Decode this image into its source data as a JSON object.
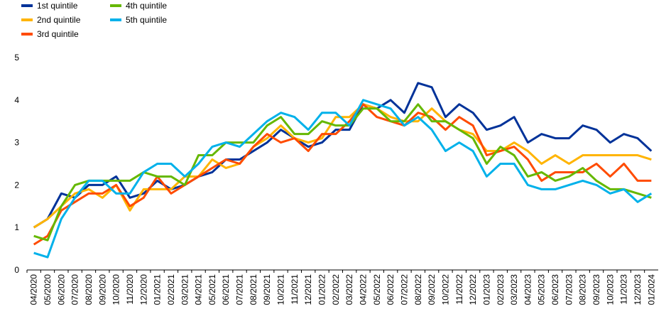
{
  "chart_data": {
    "type": "line",
    "categories": [
      "04/2020",
      "05/2020",
      "06/2020",
      "07/2020",
      "08/2020",
      "09/2020",
      "10/2020",
      "11/2020",
      "12/2020",
      "01/2021",
      "02/2021",
      "03/2021",
      "04/2021",
      "05/2021",
      "06/2021",
      "07/2021",
      "08/2021",
      "09/2021",
      "10/2021",
      "11/2021",
      "12/2021",
      "01/2022",
      "02/2022",
      "03/2022",
      "04/2022",
      "05/2022",
      "06/2022",
      "07/2022",
      "08/2022",
      "09/2022",
      "10/2022",
      "11/2022",
      "12/2022",
      "01/2023",
      "02/2023",
      "03/2023",
      "04/2023",
      "05/2023",
      "06/2023",
      "07/2023",
      "08/2023",
      "09/2023",
      "10/2023",
      "11/2023",
      "12/2023",
      "01/2024"
    ],
    "series": [
      {
        "name": "1st quintile",
        "color": "#003299",
        "values": [
          1.0,
          1.2,
          1.8,
          1.7,
          2.0,
          2.0,
          2.2,
          1.7,
          1.8,
          2.1,
          1.9,
          2.0,
          2.2,
          2.3,
          2.6,
          2.6,
          2.8,
          3.0,
          3.3,
          3.1,
          2.9,
          3.0,
          3.3,
          3.3,
          3.9,
          3.8,
          4.0,
          3.7,
          4.4,
          4.3,
          3.6,
          3.9,
          3.7,
          3.3,
          3.4,
          3.6,
          3.0,
          3.2,
          3.1,
          3.1,
          3.4,
          3.3,
          3.0,
          3.2,
          3.1,
          2.8
        ]
      },
      {
        "name": "2nd quintile",
        "color": "#ffb400",
        "values": [
          1.0,
          1.2,
          1.5,
          1.8,
          1.9,
          1.7,
          2.0,
          1.4,
          1.9,
          1.9,
          1.9,
          2.2,
          2.2,
          2.6,
          2.4,
          2.5,
          2.9,
          3.1,
          3.4,
          3.1,
          3.0,
          3.1,
          3.6,
          3.6,
          3.9,
          3.8,
          3.6,
          3.5,
          3.5,
          3.8,
          3.5,
          3.3,
          3.2,
          2.8,
          2.8,
          3.0,
          2.8,
          2.5,
          2.7,
          2.5,
          2.7,
          2.7,
          2.7,
          2.7,
          2.7,
          2.6
        ]
      },
      {
        "name": "3rd quintile",
        "color": "#ff4b00",
        "values": [
          0.6,
          0.8,
          1.4,
          1.6,
          1.8,
          1.8,
          2.0,
          1.5,
          1.7,
          2.2,
          1.8,
          2.0,
          2.2,
          2.4,
          2.6,
          2.5,
          2.9,
          3.2,
          3.0,
          3.1,
          2.8,
          3.2,
          3.2,
          3.5,
          3.9,
          3.6,
          3.5,
          3.4,
          3.7,
          3.6,
          3.3,
          3.6,
          3.4,
          2.7,
          2.8,
          2.9,
          2.6,
          2.1,
          2.3,
          2.3,
          2.3,
          2.5,
          2.2,
          2.5,
          2.1,
          2.1
        ]
      },
      {
        "name": "4th quintile",
        "color": "#65b800",
        "values": [
          0.8,
          0.7,
          1.5,
          2.0,
          2.1,
          2.1,
          2.1,
          2.1,
          2.3,
          2.2,
          2.2,
          2.0,
          2.7,
          2.7,
          3.0,
          3.0,
          3.0,
          3.4,
          3.6,
          3.2,
          3.2,
          3.5,
          3.4,
          3.4,
          3.8,
          3.8,
          3.5,
          3.5,
          3.9,
          3.5,
          3.5,
          3.3,
          3.1,
          2.5,
          2.9,
          2.7,
          2.2,
          2.3,
          2.1,
          2.2,
          2.4,
          2.1,
          1.9,
          1.9,
          1.8,
          1.7
        ]
      },
      {
        "name": "5th quintile",
        "color": "#00b1ea",
        "values": [
          0.4,
          0.3,
          1.2,
          1.7,
          2.1,
          2.1,
          1.8,
          1.8,
          2.3,
          2.5,
          2.5,
          2.2,
          2.5,
          2.9,
          3.0,
          2.9,
          3.2,
          3.5,
          3.7,
          3.6,
          3.3,
          3.7,
          3.7,
          3.4,
          4.0,
          3.9,
          3.8,
          3.4,
          3.6,
          3.3,
          2.8,
          3.0,
          2.8,
          2.2,
          2.5,
          2.5,
          2.0,
          1.9,
          1.9,
          2.0,
          2.1,
          2.0,
          1.8,
          1.9,
          1.6,
          1.8
        ]
      }
    ],
    "ylim": [
      0,
      5
    ],
    "yticks": [
      0,
      1,
      2,
      3,
      4,
      5
    ],
    "grid": false,
    "legend": "top-left"
  }
}
